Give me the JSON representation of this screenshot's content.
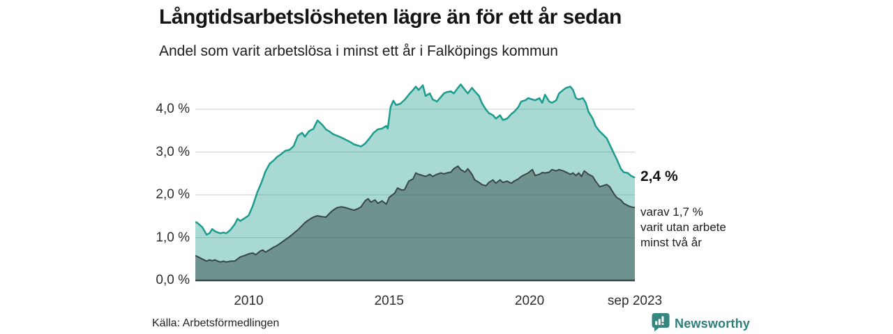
{
  "header": {
    "title": "Långtidsarbetslösheten lägre än för ett år sedan",
    "subtitle": "Andel som varit arbetslösa i minst ett år i Falköpings kommun"
  },
  "footer": {
    "source": "Källa: Arbetsförmedlingen",
    "brand": "Newsworthy",
    "brand_color": "#2c7f79"
  },
  "chart_data": {
    "type": "area",
    "title": "Långtidsarbetslösheten lägre än för ett år sedan",
    "subtitle": "Andel som varit arbetslösa i minst ett år i Falköpings kommun",
    "grid": "horizontal",
    "legend_position": "none",
    "x_range": [
      2008.1,
      2023.75
    ],
    "y_range": [
      0,
      4.75
    ],
    "y_ticks": [
      {
        "label": "4,0 %",
        "value": 4
      },
      {
        "label": "3,0 %",
        "value": 3
      },
      {
        "label": "2,0 %",
        "value": 2
      },
      {
        "label": "1,0 %",
        "value": 1
      },
      {
        "label": "0,0 %",
        "value": 0
      }
    ],
    "x_ticks": [
      {
        "label": "2010",
        "value": 2010
      },
      {
        "label": "2015",
        "value": 2015
      },
      {
        "label": "2020",
        "value": 2020
      },
      {
        "label": "sep 2023",
        "value": 2023.75
      }
    ],
    "colors": {
      "line_total": "#1b9c8c",
      "fill_total": "rgba(27,156,140,0.38)",
      "line_two_years": "#3a4545",
      "fill_two_years": "rgba(40,62,60,0.45)",
      "gridline": "#cdcdcd",
      "baseline": "#3a4545"
    },
    "annotations": {
      "end_value_label": "2,4 %",
      "sub_label_lines": [
        "varav 1,7 %",
        "varit utan arbete",
        "minst två år"
      ]
    },
    "series": [
      {
        "name": "minst ett år",
        "end_value": 2.4,
        "points": [
          [
            2008.1,
            1.37
          ],
          [
            2008.2,
            1.33
          ],
          [
            2008.35,
            1.24
          ],
          [
            2008.5,
            1.07
          ],
          [
            2008.6,
            1.1
          ],
          [
            2008.7,
            1.2
          ],
          [
            2008.8,
            1.15
          ],
          [
            2008.9,
            1.12
          ],
          [
            2009.0,
            1.1
          ],
          [
            2009.1,
            1.12
          ],
          [
            2009.2,
            1.1
          ],
          [
            2009.35,
            1.18
          ],
          [
            2009.5,
            1.31
          ],
          [
            2009.6,
            1.44
          ],
          [
            2009.7,
            1.39
          ],
          [
            2009.85,
            1.45
          ],
          [
            2010.0,
            1.52
          ],
          [
            2010.15,
            1.75
          ],
          [
            2010.3,
            2.05
          ],
          [
            2010.45,
            2.28
          ],
          [
            2010.6,
            2.55
          ],
          [
            2010.75,
            2.73
          ],
          [
            2010.9,
            2.81
          ],
          [
            2011.0,
            2.88
          ],
          [
            2011.15,
            2.95
          ],
          [
            2011.3,
            3.03
          ],
          [
            2011.45,
            3.05
          ],
          [
            2011.6,
            3.14
          ],
          [
            2011.75,
            3.38
          ],
          [
            2011.9,
            3.45
          ],
          [
            2012.0,
            3.36
          ],
          [
            2012.15,
            3.49
          ],
          [
            2012.3,
            3.54
          ],
          [
            2012.45,
            3.74
          ],
          [
            2012.6,
            3.65
          ],
          [
            2012.75,
            3.53
          ],
          [
            2012.9,
            3.47
          ],
          [
            2013.0,
            3.42
          ],
          [
            2013.15,
            3.38
          ],
          [
            2013.3,
            3.34
          ],
          [
            2013.45,
            3.29
          ],
          [
            2013.6,
            3.24
          ],
          [
            2013.75,
            3.18
          ],
          [
            2013.9,
            3.15
          ],
          [
            2014.0,
            3.13
          ],
          [
            2014.15,
            3.2
          ],
          [
            2014.3,
            3.32
          ],
          [
            2014.45,
            3.45
          ],
          [
            2014.6,
            3.53
          ],
          [
            2014.75,
            3.55
          ],
          [
            2014.9,
            3.61
          ],
          [
            2014.95,
            3.55
          ],
          [
            2015.05,
            4.05
          ],
          [
            2015.15,
            4.2
          ],
          [
            2015.25,
            4.1
          ],
          [
            2015.4,
            4.13
          ],
          [
            2015.55,
            4.22
          ],
          [
            2015.7,
            4.34
          ],
          [
            2015.85,
            4.45
          ],
          [
            2015.95,
            4.53
          ],
          [
            2016.05,
            4.45
          ],
          [
            2016.2,
            4.56
          ],
          [
            2016.3,
            4.31
          ],
          [
            2016.45,
            4.37
          ],
          [
            2016.55,
            4.23
          ],
          [
            2016.7,
            4.18
          ],
          [
            2016.85,
            4.29
          ],
          [
            2016.95,
            4.37
          ],
          [
            2017.05,
            4.4
          ],
          [
            2017.2,
            4.42
          ],
          [
            2017.3,
            4.37
          ],
          [
            2017.45,
            4.5
          ],
          [
            2017.55,
            4.58
          ],
          [
            2017.7,
            4.45
          ],
          [
            2017.8,
            4.37
          ],
          [
            2017.95,
            4.5
          ],
          [
            2018.05,
            4.42
          ],
          [
            2018.2,
            4.31
          ],
          [
            2018.3,
            4.15
          ],
          [
            2018.45,
            3.99
          ],
          [
            2018.55,
            3.91
          ],
          [
            2018.7,
            3.86
          ],
          [
            2018.8,
            3.78
          ],
          [
            2018.95,
            3.86
          ],
          [
            2019.05,
            3.75
          ],
          [
            2019.2,
            3.78
          ],
          [
            2019.35,
            3.89
          ],
          [
            2019.45,
            3.94
          ],
          [
            2019.6,
            4.05
          ],
          [
            2019.7,
            4.18
          ],
          [
            2019.85,
            4.21
          ],
          [
            2019.95,
            4.26
          ],
          [
            2020.1,
            4.23
          ],
          [
            2020.2,
            4.21
          ],
          [
            2020.35,
            4.26
          ],
          [
            2020.45,
            4.15
          ],
          [
            2020.55,
            4.34
          ],
          [
            2020.7,
            4.18
          ],
          [
            2020.8,
            4.15
          ],
          [
            2020.95,
            4.21
          ],
          [
            2021.05,
            4.37
          ],
          [
            2021.2,
            4.45
          ],
          [
            2021.3,
            4.5
          ],
          [
            2021.45,
            4.53
          ],
          [
            2021.55,
            4.45
          ],
          [
            2021.65,
            4.26
          ],
          [
            2021.75,
            4.23
          ],
          [
            2021.9,
            4.26
          ],
          [
            2022.0,
            4.15
          ],
          [
            2022.1,
            3.94
          ],
          [
            2022.25,
            3.78
          ],
          [
            2022.35,
            3.61
          ],
          [
            2022.5,
            3.48
          ],
          [
            2022.6,
            3.42
          ],
          [
            2022.75,
            3.32
          ],
          [
            2022.85,
            3.18
          ],
          [
            2023.0,
            2.97
          ],
          [
            2023.1,
            2.84
          ],
          [
            2023.25,
            2.61
          ],
          [
            2023.35,
            2.53
          ],
          [
            2023.5,
            2.51
          ],
          [
            2023.6,
            2.45
          ],
          [
            2023.75,
            2.4
          ]
        ]
      },
      {
        "name": "minst två år",
        "end_value": 1.7,
        "points": [
          [
            2008.1,
            0.58
          ],
          [
            2008.2,
            0.55
          ],
          [
            2008.35,
            0.5
          ],
          [
            2008.5,
            0.45
          ],
          [
            2008.6,
            0.48
          ],
          [
            2008.7,
            0.46
          ],
          [
            2008.8,
            0.48
          ],
          [
            2008.9,
            0.45
          ],
          [
            2009.0,
            0.43
          ],
          [
            2009.1,
            0.45
          ],
          [
            2009.2,
            0.43
          ],
          [
            2009.35,
            0.45
          ],
          [
            2009.5,
            0.45
          ],
          [
            2009.6,
            0.5
          ],
          [
            2009.7,
            0.55
          ],
          [
            2009.85,
            0.58
          ],
          [
            2010.0,
            0.62
          ],
          [
            2010.15,
            0.64
          ],
          [
            2010.25,
            0.6
          ],
          [
            2010.4,
            0.68
          ],
          [
            2010.5,
            0.71
          ],
          [
            2010.6,
            0.66
          ],
          [
            2010.75,
            0.72
          ],
          [
            2010.9,
            0.78
          ],
          [
            2011.0,
            0.81
          ],
          [
            2011.15,
            0.88
          ],
          [
            2011.3,
            0.95
          ],
          [
            2011.45,
            1.02
          ],
          [
            2011.6,
            1.1
          ],
          [
            2011.75,
            1.18
          ],
          [
            2011.9,
            1.28
          ],
          [
            2012.0,
            1.35
          ],
          [
            2012.15,
            1.42
          ],
          [
            2012.3,
            1.48
          ],
          [
            2012.45,
            1.51
          ],
          [
            2012.6,
            1.49
          ],
          [
            2012.75,
            1.48
          ],
          [
            2012.9,
            1.58
          ],
          [
            2013.0,
            1.64
          ],
          [
            2013.15,
            1.7
          ],
          [
            2013.3,
            1.72
          ],
          [
            2013.45,
            1.7
          ],
          [
            2013.6,
            1.67
          ],
          [
            2013.75,
            1.64
          ],
          [
            2013.9,
            1.68
          ],
          [
            2014.0,
            1.72
          ],
          [
            2014.15,
            1.86
          ],
          [
            2014.25,
            1.91
          ],
          [
            2014.35,
            1.83
          ],
          [
            2014.5,
            1.88
          ],
          [
            2014.6,
            1.8
          ],
          [
            2014.75,
            1.86
          ],
          [
            2014.9,
            1.78
          ],
          [
            2015.0,
            1.94
          ],
          [
            2015.1,
            1.99
          ],
          [
            2015.2,
            2.04
          ],
          [
            2015.3,
            2.16
          ],
          [
            2015.45,
            2.11
          ],
          [
            2015.55,
            2.12
          ],
          [
            2015.7,
            2.32
          ],
          [
            2015.85,
            2.37
          ],
          [
            2015.95,
            2.51
          ],
          [
            2016.05,
            2.48
          ],
          [
            2016.2,
            2.45
          ],
          [
            2016.3,
            2.43
          ],
          [
            2016.45,
            2.48
          ],
          [
            2016.55,
            2.43
          ],
          [
            2016.7,
            2.48
          ],
          [
            2016.85,
            2.51
          ],
          [
            2016.95,
            2.49
          ],
          [
            2017.05,
            2.51
          ],
          [
            2017.2,
            2.53
          ],
          [
            2017.3,
            2.61
          ],
          [
            2017.45,
            2.67
          ],
          [
            2017.55,
            2.59
          ],
          [
            2017.7,
            2.53
          ],
          [
            2017.8,
            2.61
          ],
          [
            2017.95,
            2.48
          ],
          [
            2018.05,
            2.35
          ],
          [
            2018.2,
            2.29
          ],
          [
            2018.3,
            2.24
          ],
          [
            2018.45,
            2.21
          ],
          [
            2018.55,
            2.29
          ],
          [
            2018.7,
            2.35
          ],
          [
            2018.8,
            2.27
          ],
          [
            2018.95,
            2.35
          ],
          [
            2019.05,
            2.29
          ],
          [
            2019.2,
            2.32
          ],
          [
            2019.35,
            2.27
          ],
          [
            2019.45,
            2.32
          ],
          [
            2019.6,
            2.37
          ],
          [
            2019.7,
            2.43
          ],
          [
            2019.85,
            2.48
          ],
          [
            2019.95,
            2.51
          ],
          [
            2020.1,
            2.59
          ],
          [
            2020.2,
            2.45
          ],
          [
            2020.35,
            2.48
          ],
          [
            2020.45,
            2.52
          ],
          [
            2020.55,
            2.51
          ],
          [
            2020.7,
            2.53
          ],
          [
            2020.8,
            2.59
          ],
          [
            2020.95,
            2.56
          ],
          [
            2021.05,
            2.59
          ],
          [
            2021.2,
            2.56
          ],
          [
            2021.3,
            2.53
          ],
          [
            2021.45,
            2.48
          ],
          [
            2021.55,
            2.51
          ],
          [
            2021.65,
            2.45
          ],
          [
            2021.75,
            2.51
          ],
          [
            2021.85,
            2.43
          ],
          [
            2021.95,
            2.56
          ],
          [
            2022.1,
            2.48
          ],
          [
            2022.25,
            2.43
          ],
          [
            2022.35,
            2.32
          ],
          [
            2022.5,
            2.19
          ],
          [
            2022.6,
            2.21
          ],
          [
            2022.75,
            2.24
          ],
          [
            2022.85,
            2.19
          ],
          [
            2023.0,
            2.03
          ],
          [
            2023.1,
            1.94
          ],
          [
            2023.25,
            1.88
          ],
          [
            2023.35,
            1.8
          ],
          [
            2023.5,
            1.75
          ],
          [
            2023.6,
            1.72
          ],
          [
            2023.75,
            1.7
          ]
        ]
      }
    ]
  }
}
